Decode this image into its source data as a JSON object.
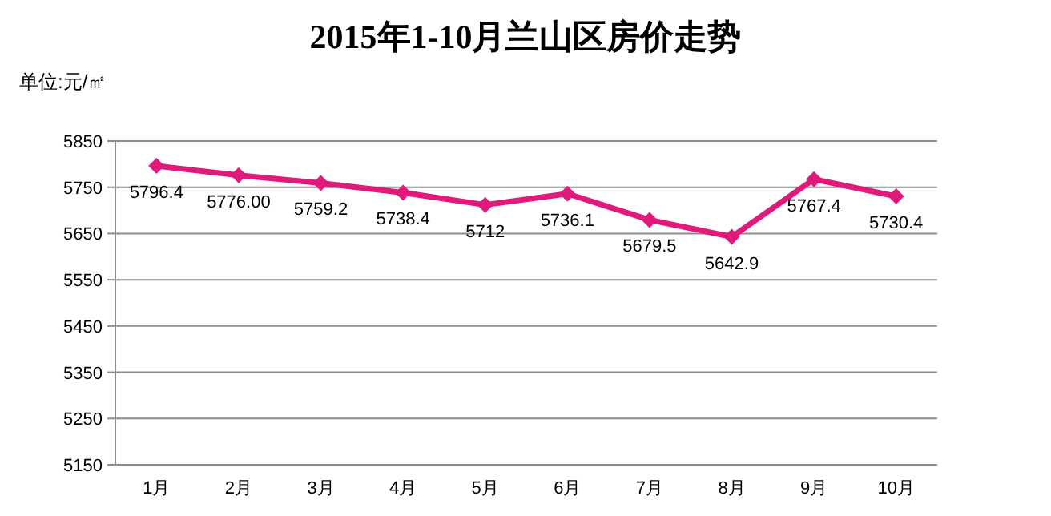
{
  "chart_data": {
    "type": "line",
    "title": "2015年1-10月兰山区房价走势",
    "ylabel": "单位:元/㎡",
    "categories": [
      "1月",
      "2月",
      "3月",
      "4月",
      "5月",
      "6月",
      "7月",
      "8月",
      "9月",
      "10月"
    ],
    "series": [
      {
        "color": "#e0197a",
        "values": [
          5796.4,
          5776.0,
          5759.2,
          5738.4,
          5712,
          5736.1,
          5679.5,
          5642.9,
          5767.4,
          5730.4
        ],
        "value_labels": [
          "5796.4",
          "5776.00",
          "5759.2",
          "5738.4",
          "5712",
          "5736.1",
          "5679.5",
          "5642.9",
          "5767.4",
          "5730.4"
        ]
      }
    ],
    "ylim": [
      5150,
      5850
    ],
    "yticks": [
      5150,
      5250,
      5350,
      5450,
      5550,
      5650,
      5750,
      5850
    ],
    "grid": "y",
    "marker": "diamond",
    "line_style": "solid"
  }
}
